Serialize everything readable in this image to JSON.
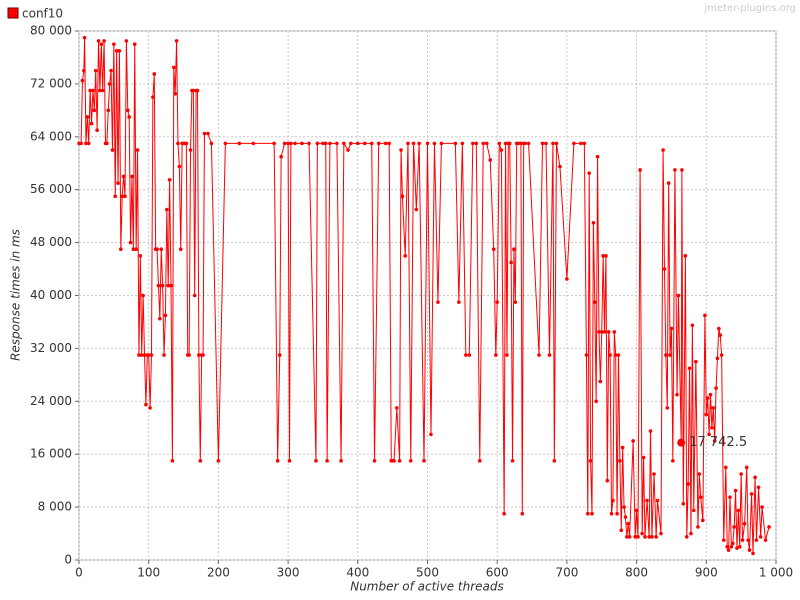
{
  "chart_data": {
    "type": "line",
    "legend": "top-left",
    "watermark": "jmeter-plugins.org",
    "xlabel": "Number of active threads",
    "ylabel": "Response times in ms",
    "xlim": [
      0,
      1000
    ],
    "ylim": [
      0,
      80000
    ],
    "xticks": [
      0,
      100,
      200,
      300,
      400,
      500,
      600,
      700,
      800,
      900,
      {
        "value": 1000,
        "label": "1 000"
      }
    ],
    "yticks": [
      0,
      {
        "value": 8000,
        "label": "8 000"
      },
      {
        "value": 16000,
        "label": "16 000"
      },
      {
        "value": 24000,
        "label": "24 000"
      },
      {
        "value": 32000,
        "label": "32 000"
      },
      {
        "value": 40000,
        "label": "40 000"
      },
      {
        "value": 48000,
        "label": "48 000"
      },
      {
        "value": 56000,
        "label": "56 000"
      },
      {
        "value": 64000,
        "label": "64 000"
      },
      {
        "value": 72000,
        "label": "72 000"
      },
      {
        "value": 80000,
        "label": "80 000"
      }
    ],
    "grid": true,
    "annotation": {
      "x": 864,
      "y": 17742.5,
      "label": "17 742.5"
    },
    "series": [
      {
        "name": "conf10",
        "color": "#ff0000",
        "x": [
          0,
          3,
          5,
          7,
          8,
          10,
          12,
          14,
          16,
          18,
          20,
          22,
          24,
          26,
          28,
          30,
          32,
          34,
          36,
          38,
          40,
          42,
          44,
          46,
          48,
          50,
          52,
          54,
          56,
          58,
          60,
          62,
          64,
          66,
          68,
          70,
          72,
          74,
          76,
          78,
          80,
          82,
          84,
          86,
          88,
          90,
          92,
          94,
          96,
          98,
          100,
          102,
          104,
          106,
          108,
          110,
          112,
          114,
          116,
          118,
          120,
          122,
          124,
          126,
          128,
          130,
          132,
          134,
          136,
          138,
          140,
          142,
          144,
          146,
          148,
          150,
          152,
          154,
          156,
          158,
          160,
          162,
          164,
          166,
          168,
          170,
          172,
          174,
          176,
          178,
          180,
          185,
          190,
          200,
          210,
          230,
          250,
          280,
          285,
          288,
          290,
          295,
          300,
          302,
          304,
          310,
          320,
          330,
          340,
          342,
          350,
          354,
          356,
          360,
          370,
          376,
          380,
          386,
          390,
          400,
          410,
          420,
          424,
          430,
          440,
          445,
          448,
          450,
          452,
          456,
          460,
          462,
          464,
          468,
          472,
          476,
          480,
          484,
          488,
          495,
          500,
          505,
          510,
          515,
          520,
          540,
          545,
          550,
          555,
          560,
          565,
          570,
          575,
          580,
          585,
          590,
          595,
          598,
          600,
          603,
          606,
          610,
          612,
          614,
          616,
          618,
          620,
          622,
          624,
          626,
          628,
          630,
          634,
          636,
          638,
          640,
          645,
          660,
          665,
          670,
          675,
          680,
          682,
          685,
          690,
          700,
          710,
          720,
          725,
          728,
          730,
          732,
          734,
          736,
          738,
          740,
          742,
          744,
          746,
          748,
          750,
          752,
          754,
          756,
          758,
          760,
          762,
          764,
          766,
          768,
          770,
          772,
          774,
          776,
          778,
          780,
          782,
          784,
          786,
          788,
          790,
          795,
          798,
          800,
          802,
          805,
          808,
          810,
          812,
          815,
          818,
          820,
          822,
          825,
          828,
          830,
          835,
          838,
          840,
          842,
          844,
          846,
          848,
          850,
          852,
          855,
          858,
          860,
          864,
          865,
          867,
          870,
          872,
          874,
          876,
          878,
          880,
          882,
          885,
          888,
          890,
          892,
          895,
          898,
          900,
          902,
          904,
          906,
          908,
          910,
          912,
          914,
          916,
          918,
          920,
          922,
          925,
          928,
          930,
          932,
          934,
          936,
          938,
          940,
          942,
          944,
          946,
          948,
          950,
          952,
          955,
          958,
          960,
          962,
          965,
          967,
          970,
          972,
          975,
          978,
          980,
          985,
          990
        ],
        "values": [
          63000,
          63000,
          72500,
          74000,
          79000,
          63000,
          67000,
          63000,
          71000,
          66000,
          71000,
          68000,
          74000,
          65000,
          78500,
          71000,
          78000,
          71000,
          78500,
          63000,
          63000,
          68000,
          72000,
          74000,
          62000,
          78000,
          55000,
          77000,
          57000,
          77000,
          47000,
          55000,
          58000,
          55000,
          78500,
          68000,
          67000,
          48000,
          58000,
          47000,
          78000,
          47000,
          62000,
          31000,
          46000,
          31000,
          40000,
          31000,
          23500,
          31000,
          31000,
          23000,
          31000,
          70000,
          73500,
          47000,
          47000,
          41500,
          36500,
          47000,
          41500,
          31000,
          37000,
          53000,
          41500,
          57500,
          41500,
          15000,
          74500,
          70500,
          78500,
          63000,
          59500,
          47000,
          63000,
          63000,
          63000,
          63000,
          31000,
          31000,
          62000,
          71000,
          71000,
          40000,
          71000,
          71000,
          31000,
          15000,
          31000,
          31000,
          64500,
          64500,
          63000,
          15000,
          63000,
          63000,
          63000,
          63000,
          15000,
          31000,
          61000,
          63000,
          63000,
          15000,
          63000,
          63000,
          63000,
          63000,
          15000,
          63000,
          63000,
          63000,
          15000,
          63000,
          63000,
          15000,
          63000,
          62000,
          63000,
          63000,
          63000,
          63000,
          15000,
          63000,
          63000,
          63000,
          15000,
          15000,
          15000,
          23000,
          15000,
          62000,
          55000,
          46000,
          63000,
          15000,
          63000,
          53000,
          63000,
          15000,
          63000,
          19000,
          63000,
          39000,
          63000,
          63000,
          39000,
          63000,
          31000,
          31000,
          63000,
          63000,
          15000,
          63000,
          63000,
          60500,
          47000,
          31000,
          39000,
          63000,
          62000,
          7000,
          63000,
          31000,
          63000,
          63000,
          45000,
          15000,
          47000,
          39000,
          63000,
          63000,
          63000,
          7000,
          63000,
          63000,
          63000,
          31000,
          63000,
          63000,
          31000,
          63000,
          15000,
          63000,
          59500,
          42500,
          63000,
          63000,
          63000,
          31000,
          7000,
          58500,
          15000,
          7000,
          51000,
          39000,
          24000,
          61000,
          34500,
          27000,
          34500,
          46000,
          34500,
          46000,
          12000,
          34500,
          31000,
          7000,
          9000,
          34500,
          31000,
          7000,
          31000,
          15000,
          4500,
          17000,
          8000,
          6500,
          3500,
          5500,
          3500,
          18000,
          3500,
          7500,
          3500,
          59000,
          4000,
          15500,
          3500,
          9000,
          3500,
          19500,
          3500,
          13000,
          3500,
          9000,
          4000,
          62000,
          44000,
          31000,
          23000,
          57000,
          31000,
          35000,
          15000,
          59000,
          25000,
          40000,
          17742.5,
          59000,
          8500,
          46000,
          3500,
          11500,
          29000,
          4000,
          35500,
          7500,
          30000,
          5000,
          13000,
          9500,
          6000,
          37000,
          22000,
          24500,
          19000,
          25000,
          20000,
          23000,
          18000,
          26000,
          30500,
          35000,
          34000,
          31000,
          3000,
          14000,
          2000,
          1500,
          9500,
          2000,
          2500,
          5000,
          10500,
          1800,
          7500,
          2000,
          13000,
          3000,
          5500,
          14000,
          3000,
          1500,
          10000,
          1000,
          12500,
          3000,
          11000,
          3500,
          8000,
          3000,
          5000
        ]
      }
    ]
  }
}
